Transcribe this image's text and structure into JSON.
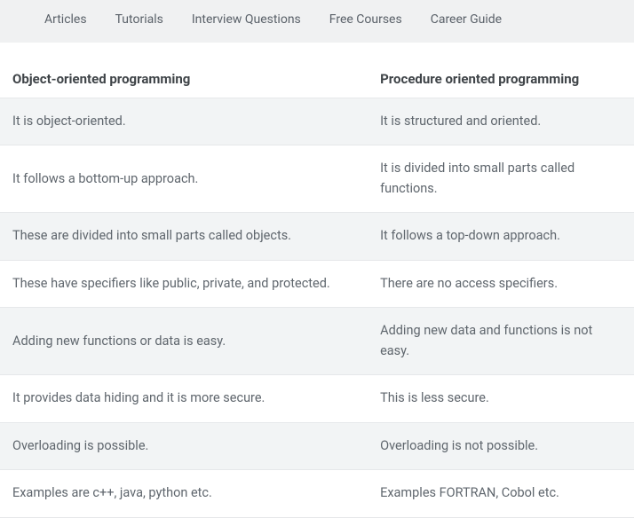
{
  "nav": {
    "items": [
      {
        "label": "Articles"
      },
      {
        "label": "Tutorials"
      },
      {
        "label": "Interview Questions"
      },
      {
        "label": "Free Courses"
      },
      {
        "label": "Career Guide"
      }
    ]
  },
  "table": {
    "columns": [
      "Object-oriented programming",
      "Procedure oriented programming"
    ],
    "rows": [
      [
        "It is object-oriented.",
        "It is structured and oriented."
      ],
      [
        "It follows a bottom-up approach.",
        "It is divided into small parts called functions."
      ],
      [
        "These are divided into small parts called objects.",
        "It follows a top-down approach."
      ],
      [
        "These have specifiers like public, private, and protected.",
        "There are no access specifiers."
      ],
      [
        "Adding new functions or data is easy.",
        "Adding new data and functions is not easy."
      ],
      [
        "It provides data hiding and it is more secure.",
        "This is less secure."
      ],
      [
        "Overloading is possible.",
        "Overloading is not possible."
      ],
      [
        "Examples are c++, java, python etc.",
        "Examples FORTRAN, Cobol etc."
      ]
    ],
    "header_bg": "#ffffff",
    "row_odd_bg": "#f2f4f5",
    "row_even_bg": "#ffffff",
    "border_color": "#e6e8ea",
    "header_color": "#3f4448",
    "cell_color": "#5f666d",
    "font_size_header": 15,
    "font_size_cell": 14.5,
    "col_widths": [
      "58%",
      "42%"
    ]
  },
  "colors": {
    "nav_bg": "#f0f1f2",
    "nav_text": "#5a6169",
    "page_bg": "#ffffff"
  }
}
